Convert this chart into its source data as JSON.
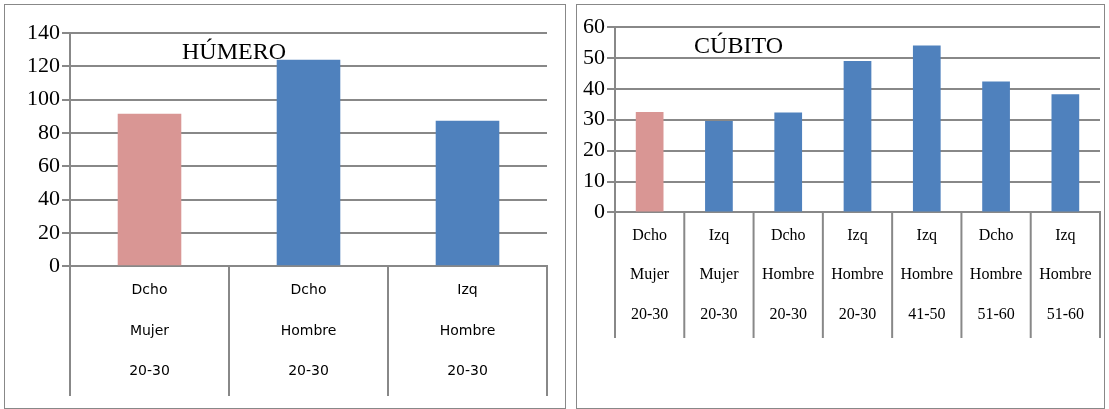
{
  "chart_data": [
    {
      "type": "bar",
      "title": "HÚMERO",
      "categories": [
        "Dcho\nMujer\n20-30",
        "Dcho\nHombre\n20-30",
        "Izq\nHombre\n20-30"
      ],
      "values": [
        91.5,
        124,
        87.3
      ],
      "colors": [
        "#d99694",
        "#4f81bd",
        "#4f81bd"
      ],
      "ylim": [
        0,
        140
      ],
      "yticks": [
        0,
        20,
        40,
        60,
        80,
        100,
        120,
        140
      ],
      "grid": "y",
      "legend": false
    },
    {
      "type": "bar",
      "title": "CÚBITO",
      "categories": [
        "Dcho\nMujer\n20-30",
        "Izq\nMujer\n20-30",
        "Dcho\nHombre\n20-30",
        "Izq\nHombre\n20-30",
        "Izq\nHombre\n41-50",
        "Dcho\nHombre\n51-60",
        "Izq\nHombre\n51-60"
      ],
      "values": [
        32.5,
        29.6,
        32.3,
        49,
        54,
        42.4,
        38.2
      ],
      "colors": [
        "#d99694",
        "#4f81bd",
        "#4f81bd",
        "#4f81bd",
        "#4f81bd",
        "#4f81bd",
        "#4f81bd"
      ],
      "ylim": [
        0,
        60
      ],
      "yticks": [
        0,
        10,
        20,
        30,
        40,
        50,
        60
      ],
      "grid": "y",
      "legend": false
    }
  ]
}
